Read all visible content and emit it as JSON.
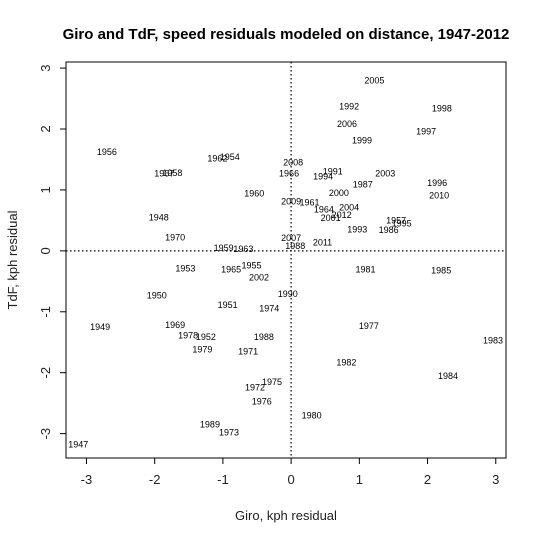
{
  "chart_data": {
    "type": "scatter",
    "title": "Giro and TdF, speed residuals modeled on distance, 1947-2012",
    "xlabel": "Giro, kph residual",
    "ylabel": "TdF, kph residual",
    "xlim": [
      -3.3,
      3.15
    ],
    "ylim": [
      -3.4,
      3.1
    ],
    "xticks": [
      -3,
      -2,
      -1,
      0,
      1,
      2,
      3
    ],
    "yticks": [
      -3,
      -2,
      -1,
      0,
      1,
      2,
      3
    ],
    "xtick_labels": [
      "-3",
      "-2",
      "-1",
      "0",
      "1",
      "2",
      "3"
    ],
    "ytick_labels": [
      "-3",
      "-2",
      "-1",
      "0",
      "1",
      "2",
      "3"
    ],
    "reference_lines": {
      "x": 0,
      "y": 0,
      "style": "dotted"
    },
    "grid": false,
    "legend": "none",
    "points": [
      {
        "label": "2005",
        "x": 1.22,
        "y": 2.8
      },
      {
        "label": "1992",
        "x": 0.85,
        "y": 2.37
      },
      {
        "label": "1998",
        "x": 2.21,
        "y": 2.34
      },
      {
        "label": "2006",
        "x": 0.82,
        "y": 2.08
      },
      {
        "label": "1997",
        "x": 1.98,
        "y": 1.96
      },
      {
        "label": "1999",
        "x": 1.04,
        "y": 1.81
      },
      {
        "label": "1956",
        "x": -2.7,
        "y": 1.62
      },
      {
        "label": "1962",
        "x": -1.08,
        "y": 1.52
      },
      {
        "label": "1954",
        "x": -0.9,
        "y": 1.54
      },
      {
        "label": "2008",
        "x": 0.03,
        "y": 1.45
      },
      {
        "label": "1967",
        "x": -1.86,
        "y": 1.27
      },
      {
        "label": "1958",
        "x": -1.74,
        "y": 1.28
      },
      {
        "label": "1966",
        "x": -0.03,
        "y": 1.27
      },
      {
        "label": "1991",
        "x": 0.61,
        "y": 1.3
      },
      {
        "label": "1994",
        "x": 0.47,
        "y": 1.22
      },
      {
        "label": "2003",
        "x": 1.38,
        "y": 1.27
      },
      {
        "label": "1987",
        "x": 1.05,
        "y": 1.09
      },
      {
        "label": "1996",
        "x": 2.14,
        "y": 1.11
      },
      {
        "label": "1960",
        "x": -0.54,
        "y": 0.94
      },
      {
        "label": "2000",
        "x": 0.7,
        "y": 0.95
      },
      {
        "label": "2009",
        "x": 0.0,
        "y": 0.81
      },
      {
        "label": "1961",
        "x": 0.27,
        "y": 0.79
      },
      {
        "label": "2010",
        "x": 2.17,
        "y": 0.91
      },
      {
        "label": "1964",
        "x": 0.48,
        "y": 0.68
      },
      {
        "label": "2004",
        "x": 0.85,
        "y": 0.71
      },
      {
        "label": "2012",
        "x": 0.74,
        "y": 0.59
      },
      {
        "label": "2001",
        "x": 0.58,
        "y": 0.54
      },
      {
        "label": "1957",
        "x": 1.54,
        "y": 0.5
      },
      {
        "label": "1995",
        "x": 1.62,
        "y": 0.45
      },
      {
        "label": "1948",
        "x": -1.94,
        "y": 0.55
      },
      {
        "label": "1993",
        "x": 0.97,
        "y": 0.35
      },
      {
        "label": "1986",
        "x": 1.43,
        "y": 0.34
      },
      {
        "label": "1970",
        "x": -1.7,
        "y": 0.22
      },
      {
        "label": "2007",
        "x": 0.0,
        "y": 0.21
      },
      {
        "label": "1988",
        "x": 0.06,
        "y": 0.08
      },
      {
        "label": "2011",
        "x": 0.46,
        "y": 0.14
      },
      {
        "label": "1959",
        "x": -0.99,
        "y": 0.05
      },
      {
        "label": "1963",
        "x": -0.7,
        "y": 0.03
      },
      {
        "label": "1953",
        "x": -1.55,
        "y": -0.29
      },
      {
        "label": "1965",
        "x": -0.88,
        "y": -0.31
      },
      {
        "label": "1955",
        "x": -0.58,
        "y": -0.24
      },
      {
        "label": "2002",
        "x": -0.47,
        "y": -0.44
      },
      {
        "label": "1981",
        "x": 1.09,
        "y": -0.31
      },
      {
        "label": "1985",
        "x": 2.2,
        "y": -0.32
      },
      {
        "label": "1950",
        "x": -1.97,
        "y": -0.73
      },
      {
        "label": "1990",
        "x": -0.05,
        "y": -0.71
      },
      {
        "label": "1951",
        "x": -0.93,
        "y": -0.89
      },
      {
        "label": "1974",
        "x": -0.32,
        "y": -0.95
      },
      {
        "label": "1949",
        "x": -2.8,
        "y": -1.25
      },
      {
        "label": "1969",
        "x": -1.7,
        "y": -1.22
      },
      {
        "label": "1977",
        "x": 1.14,
        "y": -1.23
      },
      {
        "label": "1978",
        "x": -1.51,
        "y": -1.39
      },
      {
        "label": "1952",
        "x": -1.25,
        "y": -1.41
      },
      {
        "label": "1988",
        "x": -0.4,
        "y": -1.41
      },
      {
        "label": "1983",
        "x": 2.96,
        "y": -1.47
      },
      {
        "label": "1979",
        "x": -1.3,
        "y": -1.62
      },
      {
        "label": "1971",
        "x": -0.63,
        "y": -1.65
      },
      {
        "label": "1982",
        "x": 0.81,
        "y": -1.83
      },
      {
        "label": "1984",
        "x": 2.3,
        "y": -2.05
      },
      {
        "label": "1975",
        "x": -0.28,
        "y": -2.15
      },
      {
        "label": "1972",
        "x": -0.53,
        "y": -2.24
      },
      {
        "label": "1976",
        "x": -0.43,
        "y": -2.47
      },
      {
        "label": "1980",
        "x": 0.3,
        "y": -2.7
      },
      {
        "label": "1989",
        "x": -1.19,
        "y": -2.85
      },
      {
        "label": "1973",
        "x": -0.91,
        "y": -2.98
      },
      {
        "label": "1947",
        "x": -3.12,
        "y": -3.18
      }
    ]
  }
}
